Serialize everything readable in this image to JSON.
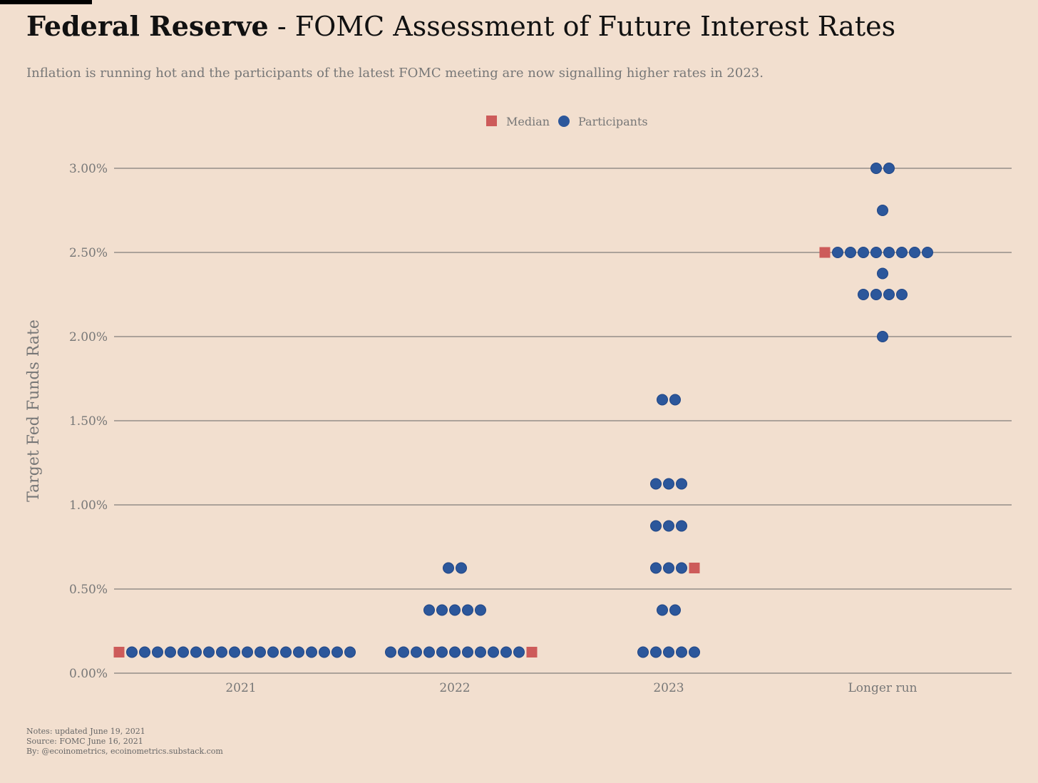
{
  "header": {
    "title_bold": "Federal Reserve",
    "title_rest": " - FOMC Assessment of Future Interest Rates",
    "subtitle": "Inflation is running hot and the participants of the latest FOMC meeting are now signalling higher rates in 2023."
  },
  "notes": {
    "line1": "Notes: updated June 19, 2021",
    "line2": "Source: FOMC June 16, 2021",
    "line3": "By: @ecoinometrics, ecoinometrics.substack.com"
  },
  "colors": {
    "background": "#f2dfcf",
    "participants": "#2c579b",
    "median": "#cd5b5a",
    "gridline": "#666666",
    "text_muted": "#777777"
  },
  "chart_data": {
    "type": "scatter",
    "ylabel": "Target Fed Funds Rate",
    "ylim": [
      0,
      0.03
    ],
    "yticks": [
      0,
      0.005,
      0.01,
      0.015,
      0.02,
      0.025,
      0.03
    ],
    "ytick_labels": [
      "0.00%",
      "0.50%",
      "1.00%",
      "1.50%",
      "2.00%",
      "2.50%",
      "3.00%"
    ],
    "grid": true,
    "legend_position": "top-center",
    "legend": [
      {
        "name": "Median",
        "marker": "square"
      },
      {
        "name": "Participants",
        "marker": "circle"
      }
    ],
    "categories": [
      "2021",
      "2022",
      "2023",
      "Longer run"
    ],
    "series": [
      {
        "name": "Participants",
        "points": [
          {
            "category": "2021",
            "rate": 0.00125,
            "count": 18
          },
          {
            "category": "2022",
            "rate": 0.00125,
            "count": 11
          },
          {
            "category": "2022",
            "rate": 0.00375,
            "count": 5
          },
          {
            "category": "2022",
            "rate": 0.00625,
            "count": 2
          },
          {
            "category": "2023",
            "rate": 0.00125,
            "count": 5
          },
          {
            "category": "2023",
            "rate": 0.00375,
            "count": 2
          },
          {
            "category": "2023",
            "rate": 0.00625,
            "count": 3
          },
          {
            "category": "2023",
            "rate": 0.00875,
            "count": 3
          },
          {
            "category": "2023",
            "rate": 0.01125,
            "count": 3
          },
          {
            "category": "2023",
            "rate": 0.01625,
            "count": 2
          },
          {
            "category": "Longer run",
            "rate": 0.02,
            "count": 1
          },
          {
            "category": "Longer run",
            "rate": 0.0225,
            "count": 4
          },
          {
            "category": "Longer run",
            "rate": 0.02375,
            "count": 1
          },
          {
            "category": "Longer run",
            "rate": 0.025,
            "count": 8
          },
          {
            "category": "Longer run",
            "rate": 0.0275,
            "count": 1
          },
          {
            "category": "Longer run",
            "rate": 0.03,
            "count": 2
          }
        ]
      },
      {
        "name": "Median",
        "points": [
          {
            "category": "2021",
            "rate": 0.00125
          },
          {
            "category": "2022",
            "rate": 0.00125
          },
          {
            "category": "2023",
            "rate": 0.00625
          },
          {
            "category": "Longer run",
            "rate": 0.025
          }
        ]
      }
    ]
  }
}
